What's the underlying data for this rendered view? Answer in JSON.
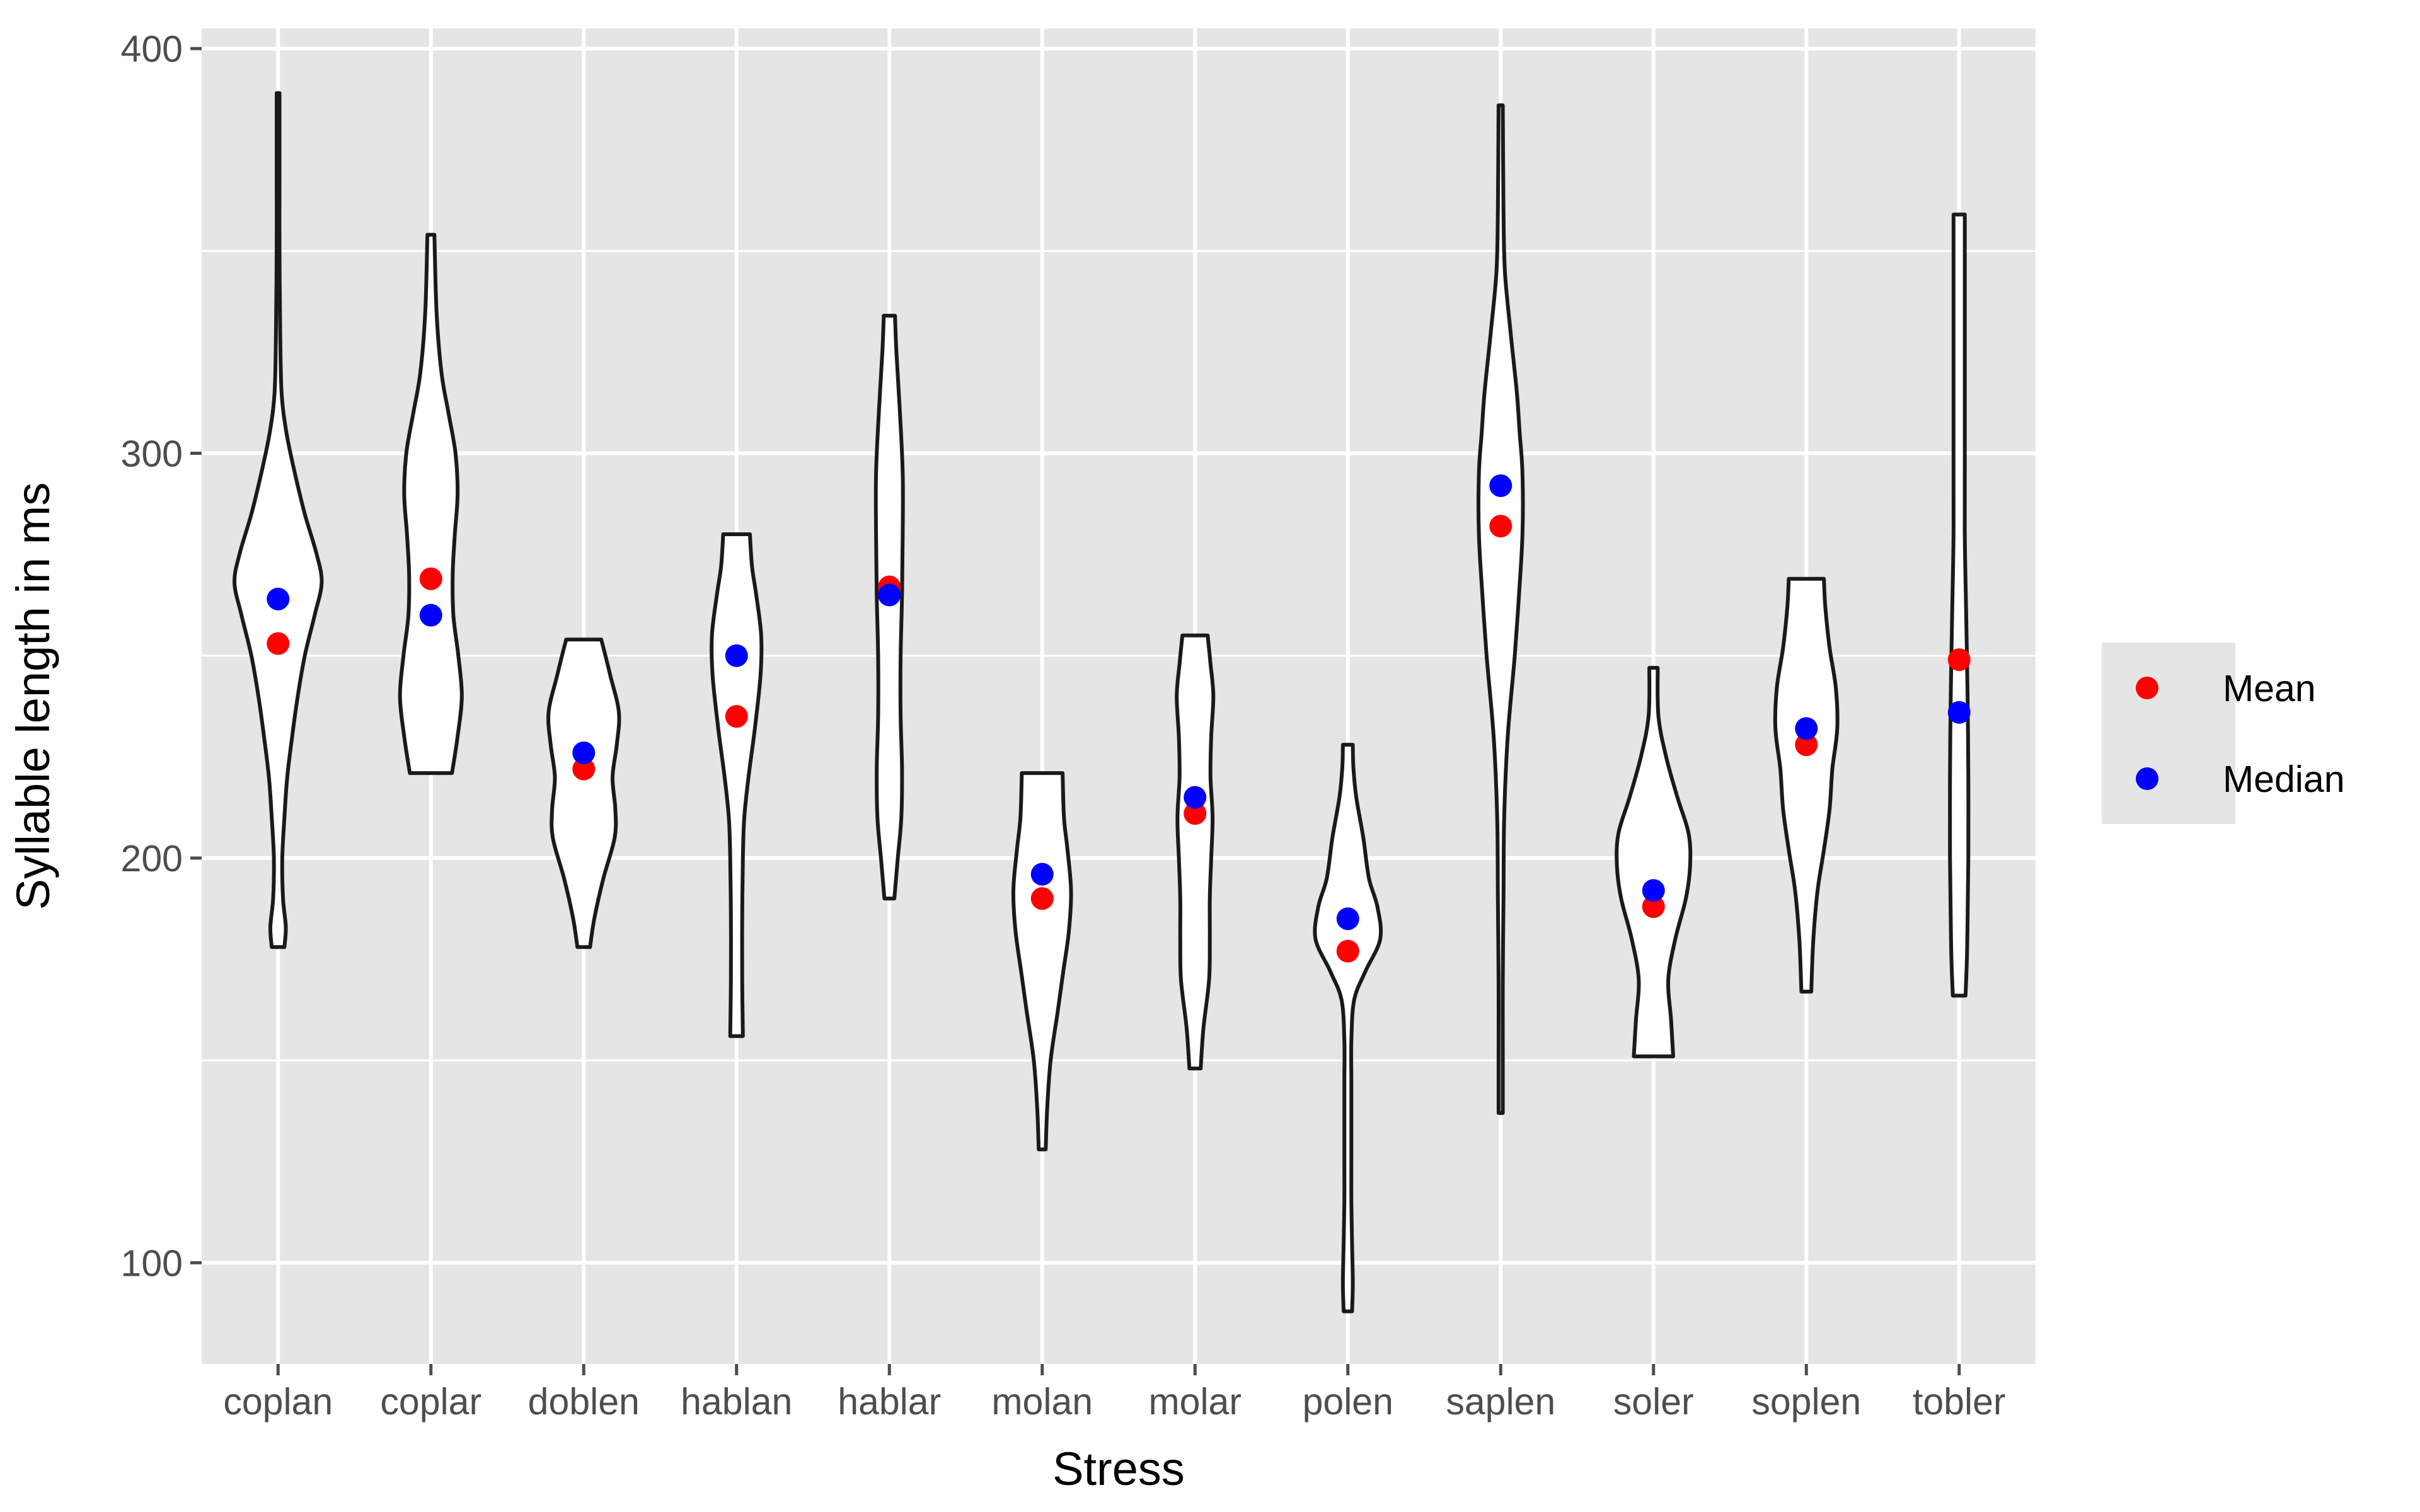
{
  "chart_data": {
    "type": "violin",
    "title": "",
    "xlabel": "Stress",
    "ylabel": "Syllable length in ms",
    "ylim": [
      75,
      405
    ],
    "yticks": [
      100,
      200,
      300,
      400
    ],
    "grid": true,
    "legend_position": "right",
    "colors": {
      "panel": "#e5e5e5",
      "grid": "#ffffff",
      "violin_fill": "#ffffff",
      "violin_stroke": "#1a1a1a",
      "tick": "#4d4d4d"
    },
    "categories": [
      "coplan",
      "coplar",
      "doblen",
      "hablan",
      "hablar",
      "molan",
      "molar",
      "polen",
      "saplen",
      "soler",
      "soplen",
      "tobler"
    ],
    "violins": [
      {
        "category": "coplan",
        "min": 178,
        "max": 389,
        "profile": [
          [
            178,
            0.09
          ],
          [
            183,
            0.11
          ],
          [
            190,
            0.07
          ],
          [
            200,
            0.06
          ],
          [
            210,
            0.09
          ],
          [
            220,
            0.13
          ],
          [
            230,
            0.2
          ],
          [
            240,
            0.28
          ],
          [
            250,
            0.38
          ],
          [
            260,
            0.52
          ],
          [
            268,
            0.62
          ],
          [
            275,
            0.55
          ],
          [
            285,
            0.38
          ],
          [
            295,
            0.24
          ],
          [
            305,
            0.12
          ],
          [
            315,
            0.05
          ],
          [
            330,
            0.03
          ],
          [
            350,
            0.02
          ],
          [
            370,
            0.02
          ],
          [
            389,
            0.02
          ]
        ]
      },
      {
        "category": "coplar",
        "min": 221,
        "max": 354,
        "profile": [
          [
            221,
            0.3
          ],
          [
            230,
            0.38
          ],
          [
            240,
            0.44
          ],
          [
            250,
            0.39
          ],
          [
            260,
            0.32
          ],
          [
            270,
            0.31
          ],
          [
            280,
            0.34
          ],
          [
            290,
            0.38
          ],
          [
            300,
            0.35
          ],
          [
            310,
            0.25
          ],
          [
            320,
            0.15
          ],
          [
            335,
            0.08
          ],
          [
            354,
            0.05
          ]
        ]
      },
      {
        "category": "doblen",
        "min": 178,
        "max": 254,
        "profile": [
          [
            178,
            0.09
          ],
          [
            185,
            0.15
          ],
          [
            195,
            0.28
          ],
          [
            205,
            0.44
          ],
          [
            212,
            0.45
          ],
          [
            220,
            0.41
          ],
          [
            228,
            0.47
          ],
          [
            236,
            0.5
          ],
          [
            245,
            0.38
          ],
          [
            254,
            0.25
          ]
        ]
      },
      {
        "category": "hablan",
        "min": 156,
        "max": 280,
        "profile": [
          [
            156,
            0.09
          ],
          [
            170,
            0.08
          ],
          [
            185,
            0.08
          ],
          [
            200,
            0.09
          ],
          [
            210,
            0.11
          ],
          [
            220,
            0.17
          ],
          [
            232,
            0.26
          ],
          [
            245,
            0.34
          ],
          [
            255,
            0.35
          ],
          [
            265,
            0.28
          ],
          [
            272,
            0.22
          ],
          [
            280,
            0.19
          ]
        ]
      },
      {
        "category": "hablar",
        "min": 190,
        "max": 334,
        "profile": [
          [
            190,
            0.07
          ],
          [
            200,
            0.12
          ],
          [
            210,
            0.17
          ],
          [
            222,
            0.18
          ],
          [
            235,
            0.16
          ],
          [
            250,
            0.16
          ],
          [
            265,
            0.18
          ],
          [
            280,
            0.19
          ],
          [
            295,
            0.19
          ],
          [
            310,
            0.15
          ],
          [
            325,
            0.1
          ],
          [
            334,
            0.08
          ]
        ]
      },
      {
        "category": "molan",
        "min": 128,
        "max": 221,
        "profile": [
          [
            128,
            0.05
          ],
          [
            138,
            0.07
          ],
          [
            150,
            0.12
          ],
          [
            162,
            0.22
          ],
          [
            172,
            0.3
          ],
          [
            182,
            0.38
          ],
          [
            192,
            0.41
          ],
          [
            202,
            0.36
          ],
          [
            210,
            0.31
          ],
          [
            221,
            0.29
          ]
        ]
      },
      {
        "category": "molar",
        "min": 148,
        "max": 255,
        "profile": [
          [
            148,
            0.08
          ],
          [
            158,
            0.12
          ],
          [
            170,
            0.2
          ],
          [
            180,
            0.21
          ],
          [
            190,
            0.21
          ],
          [
            200,
            0.23
          ],
          [
            210,
            0.25
          ],
          [
            220,
            0.22
          ],
          [
            230,
            0.23
          ],
          [
            240,
            0.26
          ],
          [
            248,
            0.22
          ],
          [
            255,
            0.18
          ]
        ]
      },
      {
        "category": "polen",
        "min": 88,
        "max": 228,
        "profile": [
          [
            88,
            0.06
          ],
          [
            95,
            0.07
          ],
          [
            105,
            0.06
          ],
          [
            115,
            0.05
          ],
          [
            125,
            0.05
          ],
          [
            135,
            0.05
          ],
          [
            145,
            0.05
          ],
          [
            155,
            0.05
          ],
          [
            165,
            0.09
          ],
          [
            172,
            0.25
          ],
          [
            180,
            0.46
          ],
          [
            188,
            0.42
          ],
          [
            195,
            0.3
          ],
          [
            205,
            0.22
          ],
          [
            215,
            0.12
          ],
          [
            222,
            0.08
          ],
          [
            228,
            0.07
          ]
        ]
      },
      {
        "category": "saplen",
        "min": 137,
        "max": 386,
        "profile": [
          [
            137,
            0.03
          ],
          [
            150,
            0.03
          ],
          [
            170,
            0.03
          ],
          [
            190,
            0.04
          ],
          [
            210,
            0.05
          ],
          [
            230,
            0.1
          ],
          [
            250,
            0.2
          ],
          [
            265,
            0.26
          ],
          [
            280,
            0.31
          ],
          [
            295,
            0.31
          ],
          [
            305,
            0.27
          ],
          [
            315,
            0.23
          ],
          [
            330,
            0.14
          ],
          [
            345,
            0.06
          ],
          [
            360,
            0.04
          ],
          [
            386,
            0.03
          ]
        ]
      },
      {
        "category": "soler",
        "min": 151,
        "max": 247,
        "profile": [
          [
            151,
            0.28
          ],
          [
            160,
            0.25
          ],
          [
            170,
            0.21
          ],
          [
            180,
            0.31
          ],
          [
            190,
            0.46
          ],
          [
            198,
            0.52
          ],
          [
            206,
            0.5
          ],
          [
            215,
            0.34
          ],
          [
            225,
            0.18
          ],
          [
            235,
            0.07
          ],
          [
            247,
            0.06
          ]
        ]
      },
      {
        "category": "soplen",
        "min": 167,
        "max": 269,
        "profile": [
          [
            167,
            0.07
          ],
          [
            180,
            0.1
          ],
          [
            192,
            0.16
          ],
          [
            202,
            0.25
          ],
          [
            212,
            0.33
          ],
          [
            222,
            0.37
          ],
          [
            232,
            0.44
          ],
          [
            242,
            0.42
          ],
          [
            252,
            0.33
          ],
          [
            262,
            0.27
          ],
          [
            269,
            0.25
          ]
        ]
      },
      {
        "category": "tobler",
        "min": 166,
        "max": 359,
        "profile": [
          [
            166,
            0.09
          ],
          [
            175,
            0.11
          ],
          [
            185,
            0.12
          ],
          [
            200,
            0.13
          ],
          [
            220,
            0.13
          ],
          [
            240,
            0.12
          ],
          [
            260,
            0.1
          ],
          [
            280,
            0.08
          ],
          [
            300,
            0.08
          ],
          [
            320,
            0.08
          ],
          [
            340,
            0.08
          ],
          [
            359,
            0.08
          ]
        ]
      }
    ],
    "series": [
      {
        "name": "Mean",
        "color": "#ff0000",
        "values": [
          253,
          269,
          222,
          235,
          267,
          190,
          211,
          177,
          282,
          188,
          228,
          249
        ]
      },
      {
        "name": "Median",
        "color": "#0000ff",
        "values": [
          264,
          260,
          226,
          250,
          265,
          196,
          215,
          185,
          292,
          192,
          232,
          236
        ]
      }
    ]
  }
}
